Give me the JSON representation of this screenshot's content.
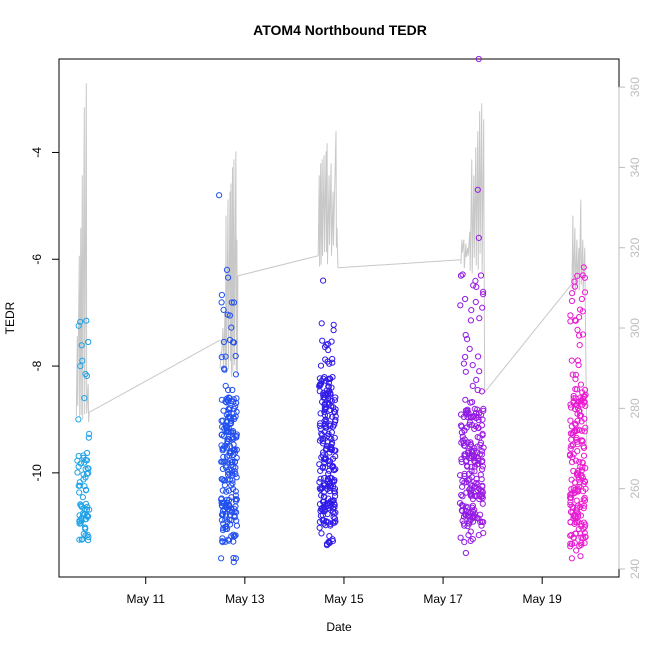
{
  "chart_data": {
    "type": "scatter",
    "title": "ATOM4 Northbound TEDR",
    "xlabel": "Date",
    "ylabel": "TEDR",
    "x_unit": "day of May",
    "xlim": [
      9.25,
      20.55
    ],
    "ylim": [
      -11.95,
      -2.25
    ],
    "y2lim": [
      238,
      367
    ],
    "x_ticks": [
      11,
      13,
      15,
      17,
      19
    ],
    "x_tick_labels": [
      "May 11",
      "May 13",
      "May 15",
      "May 17",
      "May 19"
    ],
    "y_ticks": [
      -10,
      -8,
      -6,
      -4
    ],
    "y_tick_labels": [
      "-10",
      "-8",
      "-6",
      "-4"
    ],
    "y2_ticks": [
      240,
      260,
      280,
      300,
      320,
      340,
      360
    ],
    "y2_tick_labels": [
      "240",
      "260",
      "280",
      "300",
      "320",
      "340",
      "360"
    ],
    "colors": {
      "points_gradient": [
        "#1ea6e6",
        "#1d5cf0",
        "#3118e8",
        "#8a1ae6",
        "#f01ad0"
      ],
      "heading_line": "#c8c8c8",
      "axis": "#000000",
      "secondary_axis": "#bdbdbd"
    },
    "series": [
      {
        "name": "TEDR",
        "kind": "points",
        "axis": "left",
        "clusters": [
          {
            "x_start": 9.62,
            "x_end": 9.86,
            "count": 70,
            "y_min": -11.6,
            "y_max": -7.1,
            "y_dense_low": -11.3,
            "y_dense_high": -9.6,
            "outliers": [
              [
                9.72,
                -7.9
              ],
              [
                9.8,
                -7.15
              ],
              [
                9.84,
                -7.55
              ],
              [
                9.68,
                -8.0
              ],
              [
                9.76,
                -8.6
              ]
            ]
          },
          {
            "x_start": 12.52,
            "x_end": 12.84,
            "count": 220,
            "y_min": -11.7,
            "y_max": -6.1,
            "y_dense_low": -11.3,
            "y_dense_high": -8.6,
            "outliers": [
              [
                12.48,
                -4.8
              ],
              [
                12.52,
                -11.6
              ],
              [
                12.82,
                -11.6
              ],
              [
                12.64,
                -6.2
              ]
            ]
          },
          {
            "x_start": 14.5,
            "x_end": 14.84,
            "count": 240,
            "y_min": -11.4,
            "y_max": -7.2,
            "y_dense_low": -11.0,
            "y_dense_high": -8.2,
            "outliers": [
              [
                14.58,
                -6.4
              ],
              [
                14.55,
                -7.2
              ],
              [
                14.7,
                -11.3
              ]
            ]
          },
          {
            "x_start": 17.34,
            "x_end": 17.82,
            "count": 230,
            "y_min": -11.5,
            "y_max": -6.2,
            "y_dense_low": -11.0,
            "y_dense_high": -8.8,
            "outliers": [
              [
                17.72,
                -2.25
              ],
              [
                17.7,
                -4.7
              ],
              [
                17.72,
                -5.6
              ],
              [
                17.46,
                -11.5
              ],
              [
                17.66,
                -6.8
              ]
            ]
          },
          {
            "x_start": 19.56,
            "x_end": 19.88,
            "count": 200,
            "y_min": -11.7,
            "y_max": -6.2,
            "y_dense_low": -11.4,
            "y_dense_high": -8.4,
            "outliers": [
              [
                19.84,
                -6.15
              ],
              [
                19.82,
                -6.3
              ],
              [
                19.6,
                -11.6
              ]
            ]
          }
        ]
      },
      {
        "name": "Heading",
        "kind": "line",
        "axis": "right",
        "segments": [
          {
            "x_start": 9.6,
            "x_end": 9.86,
            "base": 278,
            "peaks": [
              [
                9.62,
                298
              ],
              [
                9.66,
                318
              ],
              [
                9.69,
                325
              ],
              [
                9.72,
                338
              ],
              [
                9.76,
                355
              ],
              [
                9.8,
                361
              ],
              [
                9.84,
                286
              ]
            ],
            "end_value": 279
          },
          {
            "x_start": 12.5,
            "x_end": 12.86,
            "base": 290,
            "peaks": [
              [
                12.52,
                294
              ],
              [
                12.56,
                300
              ],
              [
                12.6,
                304
              ],
              [
                12.62,
                328
              ],
              [
                12.66,
                332
              ],
              [
                12.7,
                334
              ],
              [
                12.72,
                336
              ],
              [
                12.75,
                340
              ],
              [
                12.78,
                342
              ],
              [
                12.82,
                344
              ],
              [
                12.84,
                322
              ]
            ],
            "end_value": 313
          },
          {
            "x_start": 14.48,
            "x_end": 14.88,
            "base": 318,
            "peaks": [
              [
                14.5,
                338
              ],
              [
                14.53,
                341
              ],
              [
                14.56,
                342
              ],
              [
                14.6,
                343
              ],
              [
                14.64,
                344
              ],
              [
                14.66,
                346
              ],
              [
                14.7,
                338
              ],
              [
                14.74,
                341
              ],
              [
                14.78,
                334
              ],
              [
                14.84,
                349
              ],
              [
                14.86,
                325
              ]
            ],
            "end_value": 315
          },
          {
            "x_start": 17.36,
            "x_end": 17.84,
            "base": 316,
            "peaks": [
              [
                17.38,
                322
              ],
              [
                17.42,
                322
              ],
              [
                17.46,
                321
              ],
              [
                17.5,
                320
              ],
              [
                17.54,
                324
              ],
              [
                17.58,
                342
              ],
              [
                17.62,
                338
              ],
              [
                17.66,
                345
              ],
              [
                17.7,
                349
              ],
              [
                17.74,
                354
              ],
              [
                17.78,
                356
              ],
              [
                17.82,
                352
              ]
            ],
            "end_value": 284
          },
          {
            "x_start": 19.6,
            "x_end": 19.9,
            "base": 310,
            "peaks": [
              [
                19.62,
                328
              ],
              [
                19.66,
                325
              ],
              [
                19.7,
                322
              ],
              [
                19.74,
                320
              ],
              [
                19.78,
                332
              ],
              [
                19.82,
                322
              ],
              [
                19.86,
                320
              ]
            ],
            "end_value": 270
          }
        ],
        "connectors": [
          [
            9.86,
            279,
            12.5,
            297
          ],
          [
            12.86,
            313,
            14.48,
            318
          ],
          [
            14.88,
            315,
            17.36,
            317
          ],
          [
            17.84,
            284,
            19.6,
            311
          ]
        ]
      }
    ]
  }
}
